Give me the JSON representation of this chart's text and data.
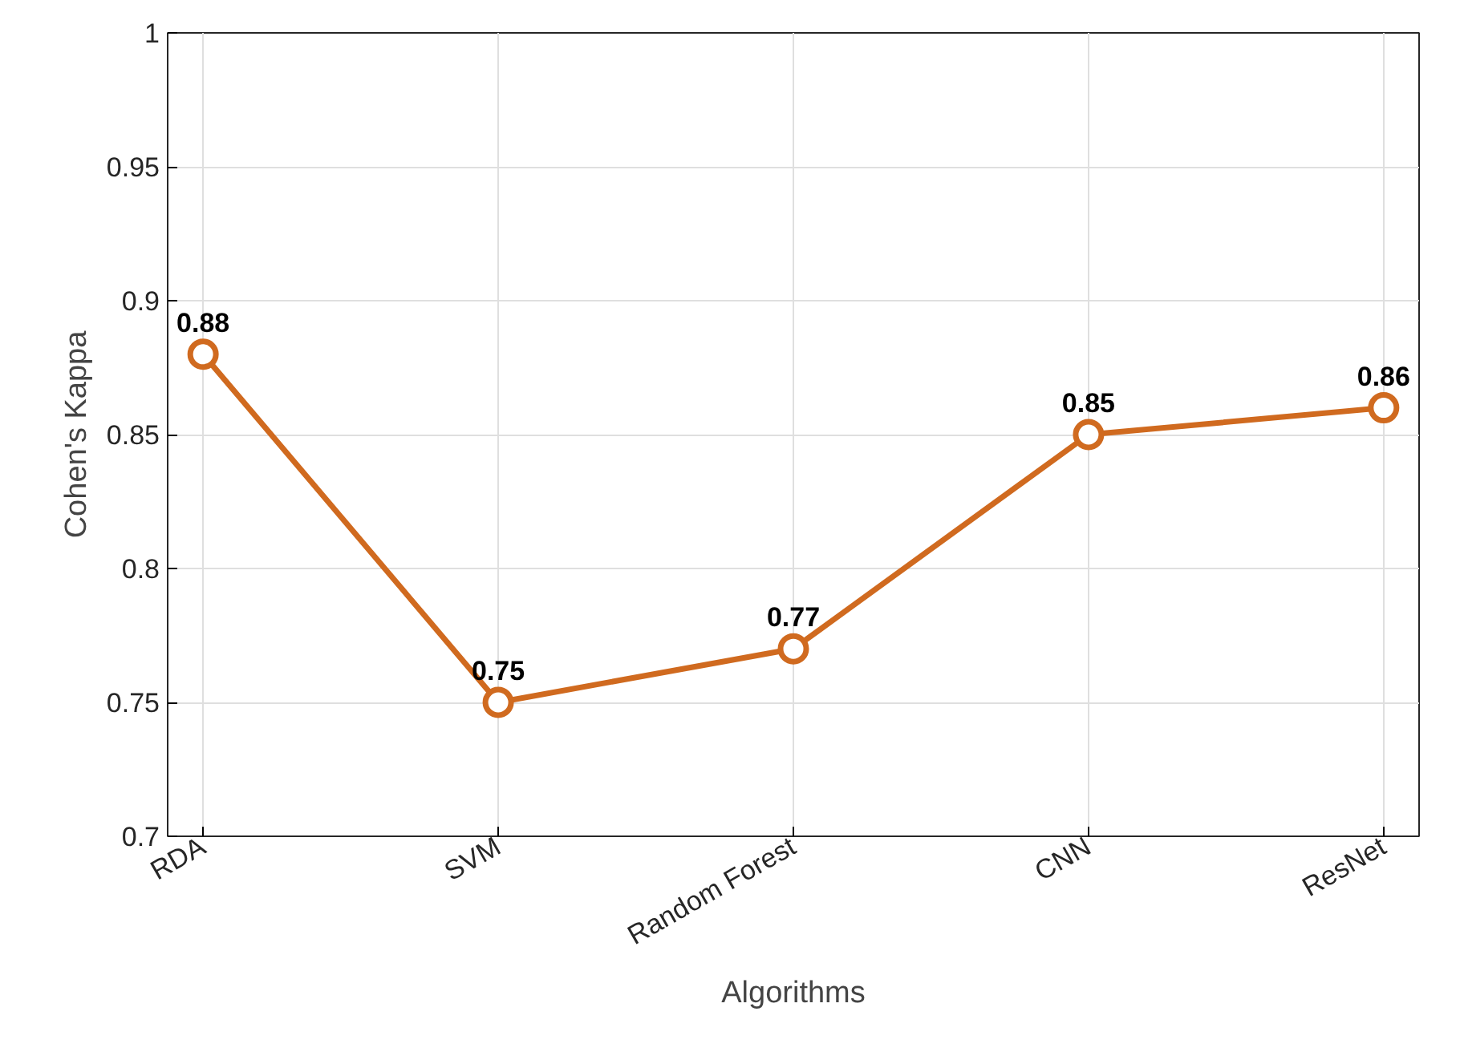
{
  "chart_data": {
    "type": "line",
    "xlabel": "Algorithms",
    "ylabel": "Cohen's Kappa",
    "categories": [
      "RDA",
      "SVM",
      "Random Forest",
      "CNN",
      "ResNet"
    ],
    "series": [
      {
        "color": "#d06a1f",
        "values": [
          0.88,
          0.75,
          0.77,
          0.85,
          0.86
        ]
      }
    ],
    "ylim": [
      0.7,
      1
    ],
    "yticks": [
      0.7,
      0.75,
      0.8,
      0.85,
      0.9,
      0.95,
      1
    ],
    "grid": true,
    "marker": "circle",
    "line_style": "solid",
    "data_labels": true
  }
}
